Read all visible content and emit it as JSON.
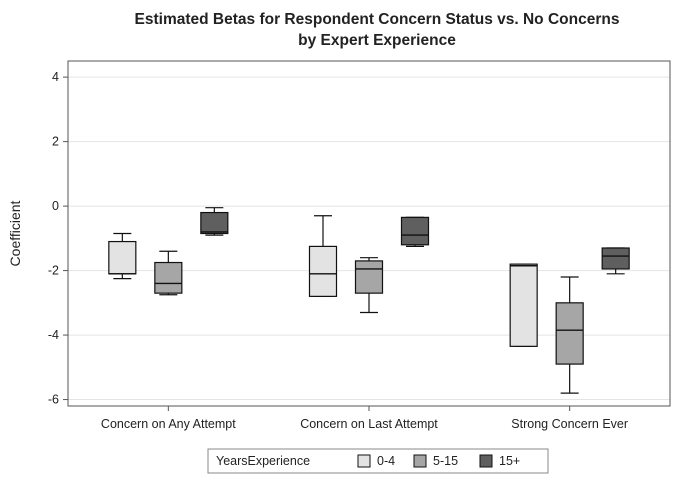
{
  "chart_data": {
    "type": "box",
    "title": "Estimated Betas for Respondent Concern Status vs. No Concerns",
    "subtitle": "by Expert Experience",
    "xlabel": "",
    "ylabel": "Coefficient",
    "ylim": [
      -6.2,
      4.5
    ],
    "yticks": [
      -6,
      -4,
      -2,
      0,
      2,
      4
    ],
    "categories": [
      "Concern on Any Attempt",
      "Concern on Last Attempt",
      "Strong Concern Ever"
    ],
    "grid": true,
    "legend": {
      "title": "YearsExperience",
      "position": "bottom"
    },
    "series": [
      {
        "name": "0-4",
        "color": "#e3e3e3",
        "boxes": [
          {
            "min": -2.25,
            "q1": -2.1,
            "median": -2.1,
            "q3": -1.1,
            "max": -0.85
          },
          {
            "min": -2.8,
            "q1": -2.8,
            "median": -2.1,
            "q3": -1.25,
            "max": -0.3
          },
          {
            "min": -4.35,
            "q1": -4.35,
            "median": -1.85,
            "q3": -1.8,
            "max": -1.8
          }
        ]
      },
      {
        "name": "5-15",
        "color": "#a6a6a6",
        "boxes": [
          {
            "min": -2.75,
            "q1": -2.7,
            "median": -2.4,
            "q3": -1.75,
            "max": -1.4
          },
          {
            "min": -3.3,
            "q1": -2.7,
            "median": -1.95,
            "q3": -1.7,
            "max": -1.6
          },
          {
            "min": -5.8,
            "q1": -4.9,
            "median": -3.85,
            "q3": -3.0,
            "max": -2.2
          }
        ]
      },
      {
        "name": "15+",
        "color": "#5f5f5f",
        "boxes": [
          {
            "min": -0.9,
            "q1": -0.85,
            "median": -0.8,
            "q3": -0.2,
            "max": -0.05
          },
          {
            "min": -1.25,
            "q1": -1.2,
            "median": -0.9,
            "q3": -0.35,
            "max": -0.35
          },
          {
            "min": -2.1,
            "q1": -1.95,
            "median": -1.55,
            "q3": -1.3,
            "max": -1.3
          }
        ]
      }
    ]
  }
}
